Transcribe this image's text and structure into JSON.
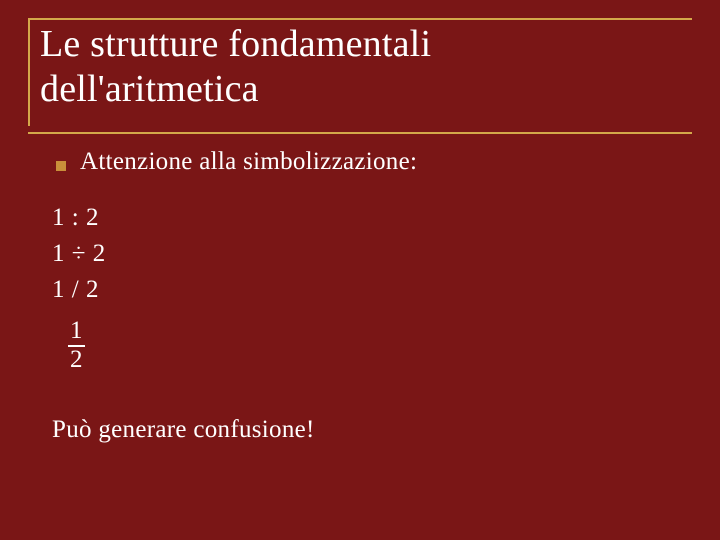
{
  "slide": {
    "title_line1": "Le strutture fondamentali",
    "title_line2": "dell'aritmetica",
    "bullet_text": "Attenzione alla simbolizzazione:",
    "math": {
      "line1": "1 : 2",
      "line2": "1 ÷ 2",
      "line3": "1 / 2",
      "fraction_num": "1",
      "fraction_den": "2"
    },
    "footer": "Può generare confusione!",
    "colors": {
      "background": "#7a1616",
      "accent": "#d4a84a",
      "bullet": "#c98f3a",
      "text": "#ffffff"
    },
    "typography": {
      "title_fontsize": 38,
      "body_fontsize": 25,
      "font_family": "Georgia serif"
    }
  }
}
